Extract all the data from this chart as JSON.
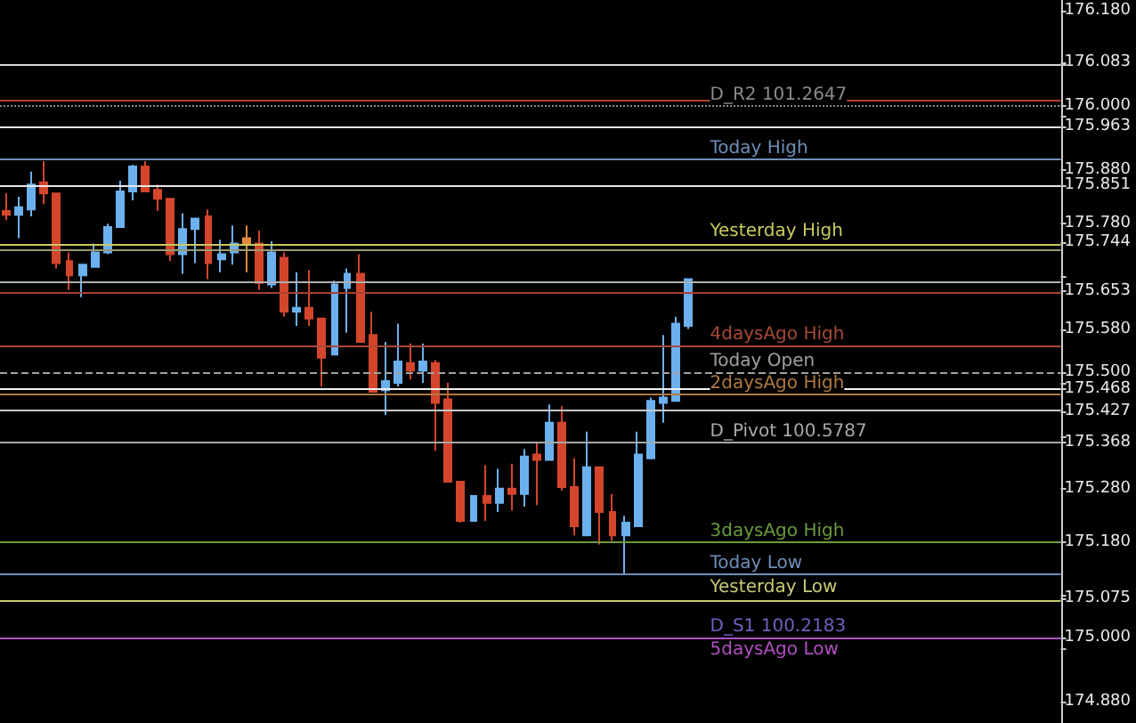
{
  "chart_data": {
    "type": "candlestick",
    "categories": [
      null,
      null,
      null,
      null,
      null,
      null,
      null,
      null,
      null,
      null,
      null,
      null,
      null,
      null,
      null,
      null,
      null,
      null,
      null,
      null,
      null,
      null,
      null,
      null,
      null,
      null,
      null,
      null,
      null,
      null,
      null,
      null,
      null,
      null,
      null,
      null,
      null,
      null,
      null,
      null,
      null,
      null,
      null,
      null,
      null,
      null,
      null,
      null,
      null,
      null,
      null,
      null,
      null,
      null,
      null,
      null,
      null,
      null,
      null,
      null,
      null,
      null,
      null,
      null,
      null,
      null,
      null,
      null,
      null,
      null,
      null,
      null,
      null,
      null,
      null,
      null,
      null,
      null,
      null,
      null,
      null,
      null,
      null,
      null
    ],
    "ohlc": [
      [
        175.803,
        175.836,
        175.786,
        175.796
      ],
      [
        175.796,
        175.83,
        175.752,
        175.81
      ],
      [
        175.806,
        175.877,
        175.793,
        175.853
      ],
      [
        175.857,
        175.897,
        175.816,
        175.836
      ],
      [
        175.836,
        175.836,
        175.695,
        175.705
      ],
      [
        175.709,
        175.725,
        175.655,
        175.682
      ],
      [
        175.682,
        175.702,
        175.641,
        175.702
      ],
      [
        175.698,
        175.742,
        175.698,
        175.725
      ],
      [
        175.725,
        175.779,
        175.722,
        175.773
      ],
      [
        175.773,
        175.86,
        175.773,
        175.84
      ],
      [
        175.84,
        175.89,
        175.823,
        175.887
      ],
      [
        175.887,
        175.897,
        175.84,
        175.84
      ],
      [
        175.843,
        175.853,
        175.803,
        175.826
      ],
      [
        175.826,
        175.826,
        175.709,
        175.722
      ],
      [
        175.722,
        175.799,
        175.685,
        175.769
      ],
      [
        175.769,
        175.789,
        175.705,
        175.789
      ],
      [
        175.793,
        175.806,
        175.675,
        175.705
      ],
      [
        175.712,
        175.749,
        175.688,
        175.722
      ],
      [
        175.725,
        175.776,
        175.702,
        175.742
      ],
      [
        175.752,
        175.776,
        175.688,
        175.742
      ],
      [
        175.742,
        175.766,
        175.655,
        175.668
      ],
      [
        175.665,
        175.746,
        175.658,
        175.725
      ],
      [
        175.715,
        175.725,
        175.604,
        175.614
      ],
      [
        175.614,
        175.688,
        175.587,
        175.621
      ],
      [
        175.621,
        175.692,
        175.587,
        175.601
      ],
      [
        175.601,
        175.601,
        175.473,
        175.527
      ],
      [
        175.533,
        175.672,
        175.533,
        175.665
      ],
      [
        175.658,
        175.695,
        175.574,
        175.685
      ],
      [
        175.685,
        175.722,
        175.557,
        175.557
      ],
      [
        175.57,
        175.614,
        175.463,
        175.463
      ],
      [
        175.466,
        175.557,
        175.419,
        175.483
      ],
      [
        175.48,
        175.591,
        175.473,
        175.52
      ],
      [
        175.517,
        175.554,
        175.486,
        175.503
      ],
      [
        175.503,
        175.554,
        175.48,
        175.52
      ],
      [
        175.517,
        175.523,
        175.352,
        175.442
      ],
      [
        175.449,
        175.48,
        175.294,
        175.294
      ],
      [
        175.294,
        175.294,
        175.217,
        175.22
      ],
      [
        175.22,
        175.267,
        175.22,
        175.267
      ],
      [
        175.267,
        175.325,
        175.22,
        175.254
      ],
      [
        175.254,
        175.318,
        175.237,
        175.281
      ],
      [
        175.281,
        175.328,
        175.24,
        175.271
      ],
      [
        175.271,
        175.355,
        175.247,
        175.341
      ],
      [
        175.345,
        175.368,
        175.25,
        175.335
      ],
      [
        175.335,
        175.439,
        175.335,
        175.405
      ],
      [
        175.405,
        175.436,
        175.277,
        175.284
      ],
      [
        175.284,
        175.338,
        175.193,
        175.21
      ],
      [
        175.193,
        175.388,
        175.193,
        175.321
      ],
      [
        175.321,
        175.321,
        175.176,
        175.237
      ],
      [
        175.237,
        175.271,
        175.183,
        175.193
      ],
      [
        175.193,
        175.23,
        175.119,
        175.217
      ],
      [
        175.21,
        175.388,
        175.21,
        175.345
      ],
      [
        175.338,
        175.452,
        175.338,
        175.446
      ],
      [
        175.442,
        175.57,
        175.405,
        175.452
      ],
      [
        175.446,
        175.604,
        175.446,
        175.591
      ],
      [
        175.587,
        175.675,
        175.581,
        175.675
      ],
      null,
      null,
      null,
      null,
      null,
      null,
      null,
      null,
      null,
      null,
      null,
      null,
      null,
      null,
      null,
      null,
      null,
      null,
      null,
      null,
      null,
      null,
      null,
      null,
      null,
      null,
      null,
      null,
      null
    ],
    "colors": [
      "#d4462c",
      "#6cb0ee",
      "#6cb0ee",
      "#d4462c",
      "#d4462c",
      "#d4462c",
      "#6cb0ee",
      "#6cb0ee",
      "#6cb0ee",
      "#6cb0ee",
      "#6cb0ee",
      "#d4462c",
      "#d4462c",
      "#d4462c",
      "#6cb0ee",
      "#6cb0ee",
      "#d4462c",
      "#6cb0ee",
      "#6cb0ee",
      "#e08a3a",
      "#d4462c",
      "#6cb0ee",
      "#d4462c",
      "#6cb0ee",
      "#d4462c",
      "#d4462c",
      "#6cb0ee",
      "#6cb0ee",
      "#d4462c",
      "#d4462c",
      "#6cb0ee",
      "#6cb0ee",
      "#d4462c",
      "#6cb0ee",
      "#d4462c",
      "#d4462c",
      "#d4462c",
      "#6cb0ee",
      "#d4462c",
      "#6cb0ee",
      "#d4462c",
      "#6cb0ee",
      "#d4462c",
      "#6cb0ee",
      "#d4462c",
      "#d4462c",
      "#6cb0ee",
      "#d4462c",
      "#d4462c",
      "#6cb0ee",
      "#6cb0ee",
      "#6cb0ee",
      "#6cb0ee",
      "#6cb0ee",
      "#6cb0ee",
      null,
      null,
      null,
      null,
      null,
      null,
      null,
      null,
      null,
      null,
      null,
      null,
      null,
      null,
      null,
      null,
      null,
      null,
      null,
      null,
      null,
      null,
      null,
      null,
      null,
      null,
      null,
      null,
      null
    ],
    "ylim": [
      174.84,
      176.2
    ],
    "yticks": [
      {
        "value": 176.18,
        "label": "176.180"
      },
      {
        "value": 176.08,
        "label": null
      },
      {
        "value": 175.98,
        "label": null
      },
      {
        "value": 175.88,
        "label": "175.880"
      },
      {
        "value": 175.78,
        "label": "175.780"
      },
      {
        "value": 175.68,
        "label": null
      },
      {
        "value": 175.58,
        "label": "175.580"
      },
      {
        "value": 175.48,
        "label": null
      },
      {
        "value": 175.38,
        "label": null
      },
      {
        "value": 175.28,
        "label": "175.280"
      },
      {
        "value": 175.18,
        "label": "175.180"
      },
      {
        "value": 175.08,
        "label": null
      },
      {
        "value": 174.98,
        "label": null
      },
      {
        "value": 174.88,
        "label": "174.880"
      },
      {
        "value": 176.083,
        "label": "176.083"
      },
      {
        "value": 176.0,
        "label": "176.000"
      },
      {
        "value": 175.963,
        "label": "175.963"
      },
      {
        "value": 175.851,
        "label": "175.851"
      },
      {
        "value": 175.744,
        "label": "175.744"
      },
      {
        "value": 175.653,
        "label": "175.653"
      },
      {
        "value": 175.5,
        "label": "175.500"
      },
      {
        "value": 175.468,
        "label": "175.468"
      },
      {
        "value": 175.427,
        "label": "175.427"
      },
      {
        "value": 175.368,
        "label": "175.368"
      },
      {
        "value": 175.075,
        "label": "175.075"
      },
      {
        "value": 175.0,
        "label": "175.000"
      }
    ],
    "ref_lines": [
      {
        "axis": "y",
        "value": 176.083,
        "color": "#d8d8d8"
      },
      {
        "axis": "y",
        "value": 176.015,
        "color": "#b5402e"
      },
      {
        "axis": "y",
        "value": 176.0,
        "label": "D_R2 101.2647",
        "color": "#8a8a8a",
        "line_style": "dotted"
      },
      {
        "axis": "y",
        "value": 175.963,
        "color": "#e8e8e8"
      },
      {
        "axis": "y",
        "value": 175.9,
        "label": "Today High",
        "color": "#6f8fb8"
      },
      {
        "axis": "y",
        "value": 175.851,
        "color": "#e8e8e8"
      },
      {
        "axis": "y",
        "value": 175.744,
        "label": "Yesterday High",
        "color": "#c8c860"
      },
      {
        "axis": "y",
        "value": 175.732,
        "color": "#9a9a70"
      },
      {
        "axis": "y",
        "value": 175.674,
        "color": "#b0b0b0"
      },
      {
        "axis": "y",
        "value": 175.653,
        "color": "#a8402e"
      },
      {
        "axis": "y",
        "value": 175.55,
        "label": "4daysAgo High",
        "color": "#a84a38"
      },
      {
        "axis": "y",
        "value": 175.5,
        "label": "Today Open",
        "color": "#a0a0a0",
        "line_style": "dashed"
      },
      {
        "axis": "y",
        "value": 175.468,
        "color": "#f0f0f0"
      },
      {
        "axis": "y",
        "value": 175.458,
        "label": "2daysAgo High",
        "color": "#b07840"
      },
      {
        "axis": "y",
        "value": 175.427,
        "color": "#c8c8c8"
      },
      {
        "axis": "y",
        "value": 175.368,
        "label": "D_Pivot 100.5787",
        "color": "#a8a8a8"
      },
      {
        "axis": "y",
        "value": 175.18,
        "label": "3daysAgo High",
        "color": "#6a9a40"
      },
      {
        "axis": "y",
        "value": 175.12,
        "label": "Today Low",
        "color": "#6f8fb8"
      },
      {
        "axis": "y",
        "value": 175.075,
        "label": "Yesterday Low",
        "color": "#c8c878"
      },
      {
        "axis": "y",
        "value": 175.0,
        "label": "D_S1 100.2183",
        "color": "#7060c0",
        "line_style": "dashed"
      },
      {
        "axis": "y",
        "value": 175.0,
        "label": "5daysAgo Low",
        "color": "#b050c0"
      }
    ],
    "tick_labels": "y"
  }
}
